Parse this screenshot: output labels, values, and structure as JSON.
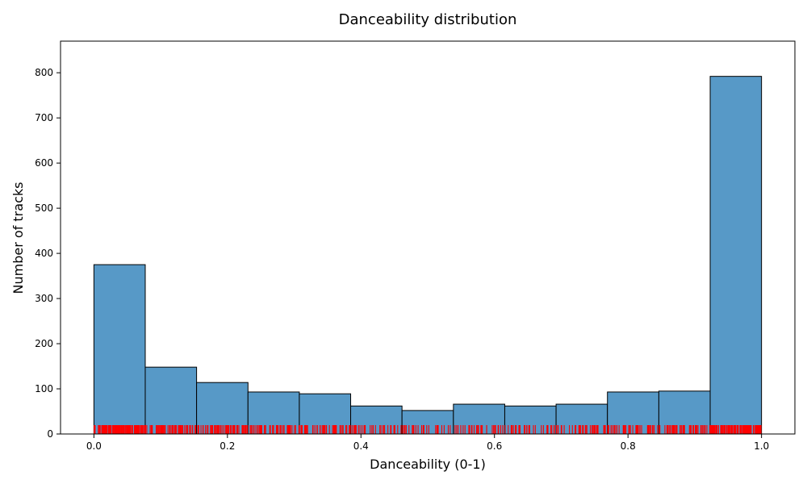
{
  "chart_data": {
    "type": "bar",
    "title": "Danceability distribution",
    "xlabel": "Danceability (0-1)",
    "ylabel": "Number of tracks",
    "xlim": [
      -0.05,
      1.05
    ],
    "ylim": [
      0,
      870
    ],
    "xticks": [
      "0.0",
      "0.2",
      "0.4",
      "0.6",
      "0.8",
      "1.0"
    ],
    "yticks": [
      "0",
      "100",
      "200",
      "300",
      "400",
      "500",
      "600",
      "700",
      "800"
    ],
    "bin_edges": [
      0.0,
      0.0769,
      0.1538,
      0.2308,
      0.3077,
      0.3846,
      0.4615,
      0.5385,
      0.6154,
      0.6923,
      0.7692,
      0.8462,
      0.9231,
      1.0
    ],
    "values": [
      375,
      148,
      114,
      93,
      89,
      62,
      52,
      66,
      62,
      66,
      93,
      95,
      792
    ],
    "bar_color": "#5799c7",
    "rug_color": "#ff0000",
    "grid": false
  }
}
